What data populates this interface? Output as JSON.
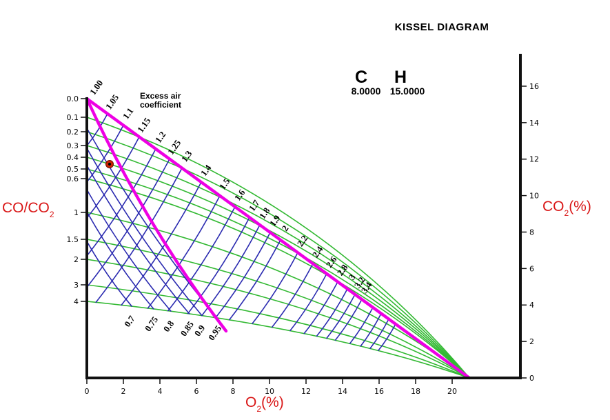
{
  "title": "KISSEL DIAGRAM",
  "fuel": {
    "c_label": "C",
    "c_value": "8.0000",
    "h_label": "H",
    "h_value": "15.0000"
  },
  "annotation": {
    "line1": "Excess air",
    "line2": "coefficient"
  },
  "axes": {
    "left": {
      "label_pre": "CO/CO",
      "label_sub": "2",
      "label_post": "",
      "tick_labels": [
        "0.0",
        "0.1",
        "0.2",
        "0.3",
        "0.4",
        "0.5",
        "0.6",
        "1",
        "1.5",
        "2",
        "3",
        "4"
      ]
    },
    "right": {
      "label_pre": "CO",
      "label_sub": "2",
      "label_post": "(%)",
      "tick_labels": [
        "0",
        "2",
        "4",
        "6",
        "8",
        "10",
        "12",
        "14",
        "16"
      ]
    },
    "bottom": {
      "label_pre": "O",
      "label_sub": "2",
      "label_post": "(%)",
      "tick_labels": [
        "0",
        "2",
        "4",
        "6",
        "8",
        "10",
        "12",
        "14",
        "16",
        "18",
        "20"
      ]
    }
  },
  "plot": {
    "lambda_labels": [
      "1.00",
      "1.05",
      "1.1",
      "1.15",
      "1.2",
      "1.25",
      "1.3",
      "1.4",
      "1.5",
      "1.6",
      "1.7",
      "1.8",
      "1.9",
      "2",
      "2.2",
      "2.4",
      "2.6",
      "2.8",
      "3",
      "3.2",
      "3.4"
    ],
    "substoich_labels": [
      "0.7",
      "0.75",
      "0.8",
      "0.85",
      "0.9",
      "0.95"
    ]
  },
  "colors": {
    "magenta": "#ee00e4",
    "green": "#33b933",
    "blue": "#2a2ab0",
    "axis": "#111111",
    "red_text": "#d91616",
    "marker_fill": "#cc2200",
    "marker_core": "#000000"
  },
  "chart_data": {
    "type": "line",
    "title": "KISSEL DIAGRAM",
    "xlabel": "O2 (%)",
    "ylabel_right": "CO2 (%)",
    "ylabel_left": "CO/CO2",
    "x_ticks": [
      0,
      2,
      4,
      6,
      8,
      10,
      12,
      14,
      16,
      18,
      20
    ],
    "right_y_ticks": [
      0,
      2,
      4,
      6,
      8,
      10,
      12,
      14,
      16
    ],
    "left_axis_co_co2_ticks": [
      0.0,
      0.1,
      0.2,
      0.3,
      0.4,
      0.5,
      0.6,
      1,
      1.5,
      2,
      3,
      4
    ],
    "fuel": {
      "C": 8.0,
      "H": 15.0
    },
    "air_point": {
      "o2_pct": 20.9,
      "co2_pct": 0
    },
    "max_co2_pct": 15.3,
    "co_co2_ratio_lines": [
      0.1,
      0.2,
      0.3,
      0.4,
      0.5,
      0.6,
      1,
      1.5,
      2,
      3,
      4
    ],
    "excess_air_coefficient_lines": [
      1.0,
      1.05,
      1.1,
      1.15,
      1.2,
      1.25,
      1.3,
      1.4,
      1.5,
      1.6,
      1.7,
      1.8,
      1.9,
      2,
      2.2,
      2.4,
      2.6,
      2.8,
      3,
      3.2,
      3.4
    ],
    "substoichiometric_excess_air_lines": [
      0.7,
      0.75,
      0.8,
      0.85,
      0.9,
      0.95
    ],
    "marker_point": {
      "o2_pct": 1.25,
      "co_co2_ratio": 0.45
    },
    "legend_position": "none",
    "grid": false
  }
}
